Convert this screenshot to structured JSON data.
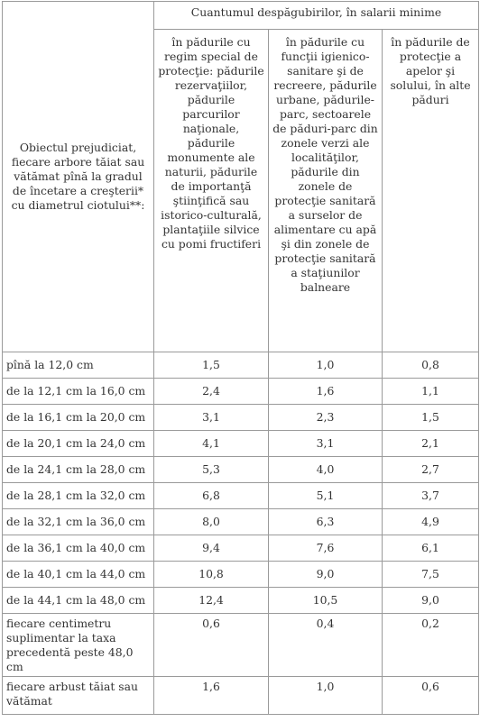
{
  "header": {
    "object_label": "Obiectul prejudiciat, fiecare arbore tăiat sau vătămat pînă la gradul de încetare a creşterii* cu diametrul ciotului**:",
    "compensation_label": "Cuantumul despăgubirilor, în salarii minime",
    "columns": [
      "în pădurile cu regim special de protecţie: pădurile rezervaţiilor, pădurile parcurilor naţionale, pădurile monumente ale naturii, pădurile de importanţă ştiinţifică sau istorico-culturală, plantaţiile silvice cu pomi fructiferi",
      "în pădurile cu funcţii igienico-sanitare şi de recreere, pădurile urbane, pădurile-parc, sectoarele de păduri-parc din zonele verzi ale localităţilor, pădurile din zonele de protecţie sanitară a surselor de alimentare cu apă şi din zonele de protecţie sanitară a staţiunilor balneare",
      "în pădurile de protecţie a apelor şi solului, în alte păduri"
    ]
  },
  "rows": [
    {
      "label": "pînă la 12,0 cm",
      "values": [
        "1,5",
        "1,0",
        "0,8"
      ]
    },
    {
      "label": "de la 12,1 cm la 16,0 cm",
      "values": [
        "2,4",
        "1,6",
        "1,1"
      ]
    },
    {
      "label": "de la 16,1 cm la 20,0 cm",
      "values": [
        "3,1",
        "2,3",
        "1,5"
      ]
    },
    {
      "label": "de la 20,1 cm la 24,0 cm",
      "values": [
        "4,1",
        "3,1",
        "2,1"
      ]
    },
    {
      "label": "de la 24,1 cm la 28,0 cm",
      "values": [
        "5,3",
        "4,0",
        "2,7"
      ]
    },
    {
      "label": "de la 28,1 cm la 32,0 cm",
      "values": [
        "6,8",
        "5,1",
        "3,7"
      ]
    },
    {
      "label": "de la 32,1 cm la 36,0 cm",
      "values": [
        "8,0",
        "6,3",
        "4,9"
      ]
    },
    {
      "label": "de la 36,1 cm la 40,0 cm",
      "values": [
        "9,4",
        "7,6",
        "6,1"
      ]
    },
    {
      "label": "de la 40,1 cm la 44,0 cm",
      "values": [
        "10,8",
        "9,0",
        "7,5"
      ]
    },
    {
      "label": "de la 44,1 cm la 48,0 cm",
      "values": [
        "12,4",
        "10,5",
        "9,0"
      ]
    },
    {
      "label": "fiecare centimetru suplimentar la taxa precedentă peste 48,0 cm",
      "values": [
        "0,6",
        "0,4",
        "0,2"
      ]
    },
    {
      "label": "fiecare arbust tăiat sau vătămat",
      "values": [
        "1,6",
        "1,0",
        "0,6"
      ]
    }
  ]
}
